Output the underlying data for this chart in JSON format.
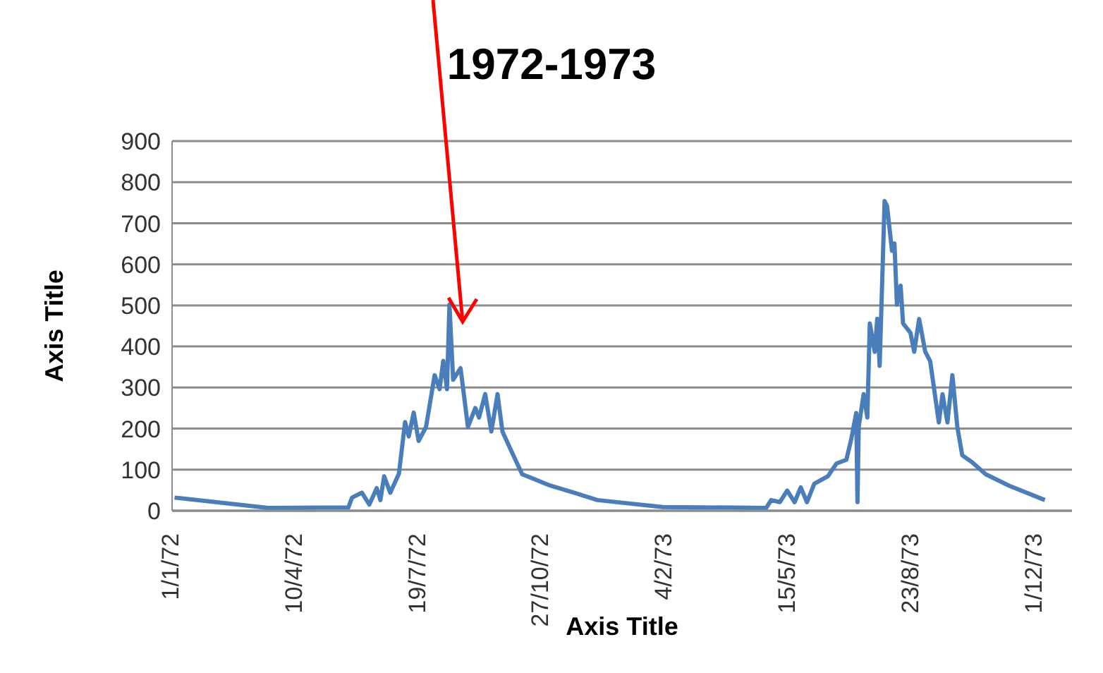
{
  "chart_data": {
    "type": "line",
    "title": "1972-1973",
    "xlabel": "Axis Title",
    "ylabel": "Axis Title",
    "x": [
      "1972-01-03",
      "1972-03-19",
      "1972-05-23",
      "1972-05-26",
      "1972-06-03",
      "1972-06-09",
      "1972-06-15",
      "1972-06-18",
      "1972-06-21",
      "1972-06-26",
      "1972-07-03",
      "1972-07-08",
      "1972-07-11",
      "1972-07-15",
      "1972-07-19",
      "1972-07-25",
      "1972-08-01",
      "1972-08-05",
      "1972-08-08",
      "1972-08-11",
      "1972-08-13",
      "1972-08-16",
      "1972-08-22",
      "1972-08-28",
      "1972-09-03",
      "1972-09-06",
      "1972-09-11",
      "1972-09-16",
      "1972-09-21",
      "1972-09-25",
      "1972-10-02",
      "1972-10-11",
      "1972-11-03",
      "1972-11-22",
      "1972-12-11",
      "1973-02-02",
      "1973-04-27",
      "1973-05-01",
      "1973-05-08",
      "1973-05-14",
      "1973-05-20",
      "1973-05-25",
      "1973-05-30",
      "1973-06-05",
      "1973-06-16",
      "1973-06-23",
      "1973-07-01",
      "1973-07-05",
      "1973-07-09",
      "1973-07-10",
      "1973-07-11",
      "1973-07-15",
      "1973-07-18",
      "1973-07-20",
      "1973-07-24",
      "1973-07-26",
      "1973-07-28",
      "1973-08-01",
      "1973-08-03",
      "1973-08-07",
      "1973-08-09",
      "1973-08-11",
      "1973-08-14",
      "1973-08-16",
      "1973-08-22",
      "1973-08-25",
      "1973-08-29",
      "1973-09-03",
      "1973-09-07",
      "1973-09-14",
      "1973-09-17",
      "1973-09-21",
      "1973-09-25",
      "1973-09-29",
      "1973-10-03",
      "1973-10-11",
      "1973-10-22",
      "1973-11-10",
      "1973-12-09"
    ],
    "series": [
      {
        "color": "#4a7ebb",
        "values": [
          32,
          7,
          8,
          32,
          44,
          15,
          55,
          26,
          84,
          44,
          90,
          216,
          181,
          239,
          170,
          204,
          330,
          296,
          365,
          296,
          502,
          319,
          347,
          204,
          250,
          227,
          284,
          193,
          284,
          193,
          147,
          89,
          61,
          44,
          26,
          9,
          7,
          26,
          21,
          49,
          21,
          57,
          21,
          66,
          84,
          115,
          124,
          175,
          238,
          21,
          204,
          284,
          227,
          456,
          387,
          467,
          353,
          754,
          742,
          633,
          651,
          502,
          548,
          456,
          433,
          387,
          467,
          387,
          364,
          215,
          284,
          215,
          330,
          204,
          135,
          118,
          89,
          61,
          26
        ]
      }
    ],
    "xlim": [
      "1972-01-01",
      "1973-12-31"
    ],
    "xticks": [
      {
        "value": "1972-01-01",
        "label": "1/1/72"
      },
      {
        "value": "1972-04-10",
        "label": "10/4/72"
      },
      {
        "value": "1972-07-19",
        "label": "19/7/72"
      },
      {
        "value": "1972-10-27",
        "label": "27/10/72"
      },
      {
        "value": "1973-02-04",
        "label": "4/2/73"
      },
      {
        "value": "1973-05-15",
        "label": "15/5/73"
      },
      {
        "value": "1973-08-23",
        "label": "23/8/73"
      },
      {
        "value": "1973-12-01",
        "label": "1/12/73"
      }
    ],
    "ylim": [
      0,
      900
    ],
    "yticks": [
      0,
      100,
      200,
      300,
      400,
      500,
      600,
      700,
      800,
      900
    ],
    "grid": "y",
    "marker": "none",
    "line_style": "solid"
  }
}
